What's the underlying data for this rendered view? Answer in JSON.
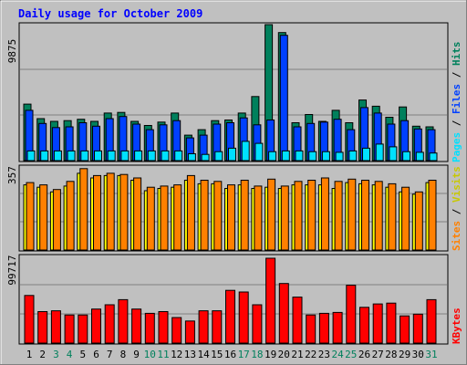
{
  "chart_data": [
    {
      "type": "bar",
      "title": "Daily usage for October 2009",
      "categories": [
        "1",
        "2",
        "3",
        "4",
        "5",
        "6",
        "7",
        "8",
        "9",
        "10",
        "11",
        "12",
        "13",
        "14",
        "15",
        "16",
        "17",
        "18",
        "19",
        "20",
        "21",
        "22",
        "23",
        "24",
        "25",
        "26",
        "27",
        "28",
        "29",
        "30",
        "31"
      ],
      "weekend_days": [
        "3",
        "4",
        "10",
        "11",
        "17",
        "18",
        "24",
        "25",
        "31"
      ],
      "ymax_label": "9875",
      "ylim": [
        0,
        9875
      ],
      "series": [
        {
          "name": "Hits",
          "color": "#00805c",
          "values": [
            4100,
            3050,
            2850,
            2900,
            3000,
            2850,
            3450,
            3500,
            2850,
            2550,
            2800,
            3450,
            1850,
            2250,
            2900,
            2950,
            3450,
            4650,
            9875,
            9300,
            2750,
            3350,
            2850,
            3650,
            2750,
            4400,
            3950,
            3150,
            3900,
            2500,
            2450
          ]
        },
        {
          "name": "Files",
          "color": "#0040ff",
          "values": [
            3650,
            2700,
            2400,
            2450,
            2750,
            2500,
            3050,
            3200,
            2650,
            2250,
            2600,
            2900,
            1650,
            1850,
            2650,
            2750,
            3100,
            2600,
            2950,
            9100,
            2450,
            2700,
            2800,
            3000,
            2250,
            3850,
            3450,
            2650,
            2900,
            2300,
            2250
          ]
        },
        {
          "name": "Pages",
          "color": "#00e0ff",
          "values": [
            700,
            700,
            700,
            700,
            700,
            700,
            700,
            700,
            700,
            700,
            700,
            700,
            500,
            450,
            650,
            900,
            1400,
            1250,
            650,
            700,
            700,
            650,
            650,
            600,
            700,
            900,
            1200,
            1000,
            650,
            600,
            550
          ]
        }
      ]
    },
    {
      "type": "bar",
      "categories": [
        "1",
        "2",
        "3",
        "4",
        "5",
        "6",
        "7",
        "8",
        "9",
        "10",
        "11",
        "12",
        "13",
        "14",
        "15",
        "16",
        "17",
        "18",
        "19",
        "20",
        "21",
        "22",
        "23",
        "24",
        "25",
        "26",
        "27",
        "28",
        "29",
        "30",
        "31"
      ],
      "ymax_label": "357",
      "ylim": [
        0,
        357
      ],
      "series": [
        {
          "name": "Visits",
          "color": "#ffff00",
          "values": [
            280,
            270,
            250,
            275,
            330,
            310,
            320,
            320,
            300,
            255,
            265,
            270,
            300,
            285,
            285,
            265,
            280,
            265,
            270,
            265,
            280,
            280,
            280,
            265,
            290,
            285,
            280,
            270,
            250,
            240,
            290
          ]
        },
        {
          "name": "Sites",
          "color": "#ff8000",
          "values": [
            290,
            280,
            260,
            295,
            350,
            320,
            330,
            325,
            310,
            270,
            275,
            280,
            320,
            300,
            295,
            280,
            300,
            275,
            305,
            275,
            295,
            300,
            310,
            295,
            305,
            300,
            295,
            285,
            270,
            250,
            300
          ]
        }
      ]
    },
    {
      "type": "bar",
      "categories": [
        "1",
        "2",
        "3",
        "4",
        "5",
        "6",
        "7",
        "8",
        "9",
        "10",
        "11",
        "12",
        "13",
        "14",
        "15",
        "16",
        "17",
        "18",
        "19",
        "20",
        "21",
        "22",
        "23",
        "24",
        "25",
        "26",
        "27",
        "28",
        "29",
        "30",
        "31"
      ],
      "ymax_label": "99717",
      "ylim": [
        0,
        99717
      ],
      "series": [
        {
          "name": "KBytes",
          "color": "#ff0000",
          "values": [
            56000,
            37000,
            38000,
            33000,
            33000,
            40000,
            45000,
            51000,
            40000,
            35000,
            37000,
            30000,
            26000,
            38000,
            38000,
            62000,
            60000,
            45000,
            99717,
            70000,
            54000,
            33000,
            35000,
            36000,
            68000,
            42000,
            46000,
            47000,
            32000,
            34000,
            51000
          ]
        }
      ]
    }
  ],
  "legend": {
    "pages_label": "Pages",
    "files_label": "Files",
    "hits_label": "Hits",
    "sites_label": "Sites",
    "visits_label": "Visits",
    "kbytes_label": "KBytes",
    "separator": " / "
  },
  "colors": {
    "background": "#C0C0C0",
    "plot_bg": "#C0C0C0",
    "title": "#0000FF",
    "day_label": "#000000",
    "weekend_label": "#00805c",
    "grid": "#808080"
  }
}
